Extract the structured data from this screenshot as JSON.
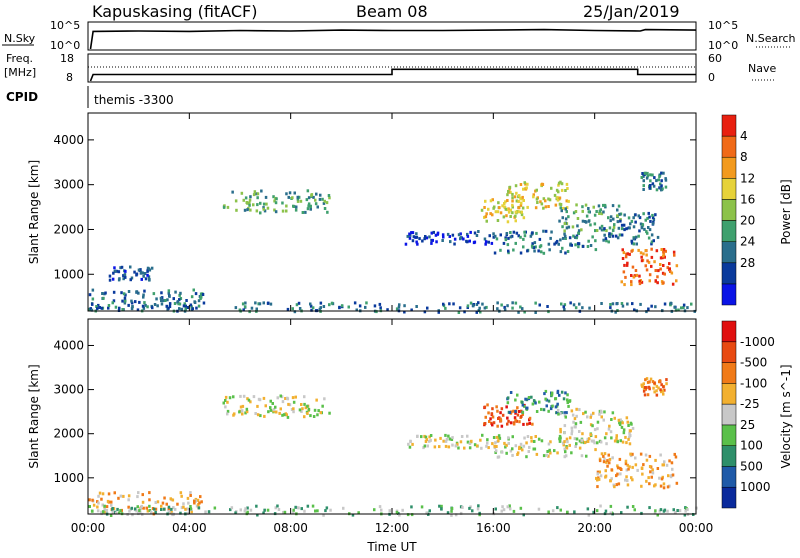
{
  "header": {
    "station": "Kapuskasing (fitACF)",
    "beam": "Beam 08",
    "date": "25/Jan/2019"
  },
  "top_panels": {
    "nsky_label": "N.Sky",
    "nsky_ticks": [
      "10^5",
      "10^0"
    ],
    "nsearch_label": "N.Search",
    "nsearch_ticks": [
      "10^5",
      "10^0"
    ],
    "freq_label": "Freq.",
    "freq_unit": "[MHz]",
    "freq_ticks": [
      "18",
      "8"
    ],
    "nave_label": "Nave",
    "nave_ticks": [
      "60",
      "0"
    ],
    "cpid_label": "CPID",
    "cpid_value": "themis -3300"
  },
  "colors": {
    "power_scale": [
      "#0a14e6",
      "#0a3a9c",
      "#2a6e8c",
      "#3fa06e",
      "#8cc24a",
      "#e6d23a",
      "#f29a1e",
      "#f06a18",
      "#e82010"
    ],
    "velocity_scale": [
      "#0a2a9c",
      "#1f5aa8",
      "#2e8f6a",
      "#5ac04a",
      "#c8c8c8",
      "#f2b030",
      "#f07a18",
      "#e84a12",
      "#e01010"
    ],
    "noise_line": "#000000",
    "frame": "#000000"
  },
  "chart_data": [
    {
      "type": "line",
      "title": "N.Sky / N.Search",
      "xlim": [
        0,
        24
      ],
      "series": [
        {
          "name": "N.Sky",
          "x": [
            0.1,
            0.2,
            2,
            4,
            6,
            8,
            10,
            12,
            14,
            16,
            18,
            20,
            21.8,
            22,
            24
          ],
          "y": [
            0,
            4.0,
            4.1,
            4.0,
            4.2,
            4.1,
            4.3,
            4.2,
            4.2,
            4.3,
            4.4,
            4.2,
            4.1,
            4.4,
            4.3
          ]
        }
      ]
    },
    {
      "type": "line",
      "title": "Freq. / Nave",
      "xlim": [
        0,
        24
      ],
      "ylim": [
        8,
        18
      ],
      "series": [
        {
          "name": "Freq.",
          "x": [
            0.1,
            0.2,
            12,
            12,
            21.7,
            21.7,
            24
          ],
          "y": [
            8,
            10.5,
            10.5,
            12.5,
            12.5,
            10.5,
            10.5
          ]
        }
      ]
    },
    {
      "type": "heatmap",
      "title": "",
      "xlabel": "",
      "ylabel": "Slant Range [km]",
      "x_ticks": [
        "00:00",
        "04:00",
        "08:00",
        "12:00",
        "16:00",
        "20:00",
        "00:00"
      ],
      "y_ticks": [
        1000,
        2000,
        3000,
        4000
      ],
      "xlim": [
        0,
        24
      ],
      "ylim": [
        180,
        4600
      ],
      "colorbar_label": "Power [dB]",
      "colorbar_ticks": [
        4,
        8,
        12,
        16,
        20,
        24,
        28
      ],
      "regions": [
        {
          "t": [
            5.3,
            9.5
          ],
          "r": [
            2400,
            2900
          ],
          "level": 3
        },
        {
          "t": [
            0,
            4.5
          ],
          "r": [
            200,
            700
          ],
          "level": 2
        },
        {
          "t": [
            0.8,
            2.5
          ],
          "r": [
            900,
            1200
          ],
          "level": 1
        },
        {
          "t": [
            12.5,
            16.2
          ],
          "r": [
            1700,
            2000
          ],
          "level": 1
        },
        {
          "t": [
            15.5,
            17.2
          ],
          "r": [
            2200,
            2700
          ],
          "level": 5
        },
        {
          "t": [
            16.5,
            19.0
          ],
          "r": [
            2500,
            3100
          ],
          "level": 5
        },
        {
          "t": [
            16.0,
            20.0
          ],
          "r": [
            1500,
            2000
          ],
          "level": 2
        },
        {
          "t": [
            18.5,
            21.0
          ],
          "r": [
            2000,
            2600
          ],
          "level": 3
        },
        {
          "t": [
            20.3,
            22.5
          ],
          "r": [
            1700,
            2400
          ],
          "level": 2
        },
        {
          "t": [
            21.0,
            23.2
          ],
          "r": [
            800,
            1600
          ],
          "level": 7
        },
        {
          "t": [
            21.8,
            22.8
          ],
          "r": [
            2900,
            3300
          ],
          "level": 2
        },
        {
          "t": [
            0,
            24
          ],
          "r": [
            180,
            400
          ],
          "level": 2
        }
      ]
    },
    {
      "type": "heatmap",
      "title": "",
      "xlabel": "Time UT",
      "ylabel": "Slant Range [km]",
      "x_ticks": [
        "00:00",
        "04:00",
        "08:00",
        "12:00",
        "16:00",
        "20:00",
        "00:00"
      ],
      "y_ticks": [
        1000,
        2000,
        3000,
        4000
      ],
      "xlim": [
        0,
        24
      ],
      "ylim": [
        180,
        4600
      ],
      "colorbar_label": "Velocity [m s^-1]",
      "colorbar_ticks": [
        1000,
        500,
        100,
        25,
        -25,
        -100,
        -500,
        -1000
      ],
      "regions": [
        {
          "t": [
            5.3,
            9.5
          ],
          "r": [
            2400,
            2900
          ],
          "level": 4
        },
        {
          "t": [
            0,
            4.5
          ],
          "r": [
            200,
            700
          ],
          "level": 5
        },
        {
          "t": [
            12.5,
            16.2
          ],
          "r": [
            1700,
            2000
          ],
          "level": 4
        },
        {
          "t": [
            15.5,
            17.5
          ],
          "r": [
            2200,
            2700
          ],
          "level": 7
        },
        {
          "t": [
            16.5,
            19.0
          ],
          "r": [
            2500,
            3000
          ],
          "level": 2
        },
        {
          "t": [
            16.0,
            20.0
          ],
          "r": [
            1500,
            2000
          ],
          "level": 4
        },
        {
          "t": [
            18.5,
            21.5
          ],
          "r": [
            1800,
            2600
          ],
          "level": 4
        },
        {
          "t": [
            20.0,
            23.2
          ],
          "r": [
            800,
            1600
          ],
          "level": 5
        },
        {
          "t": [
            21.8,
            22.8
          ],
          "r": [
            2900,
            3300
          ],
          "level": 6
        },
        {
          "t": [
            0,
            24
          ],
          "r": [
            180,
            400
          ],
          "level": 3
        }
      ]
    }
  ]
}
